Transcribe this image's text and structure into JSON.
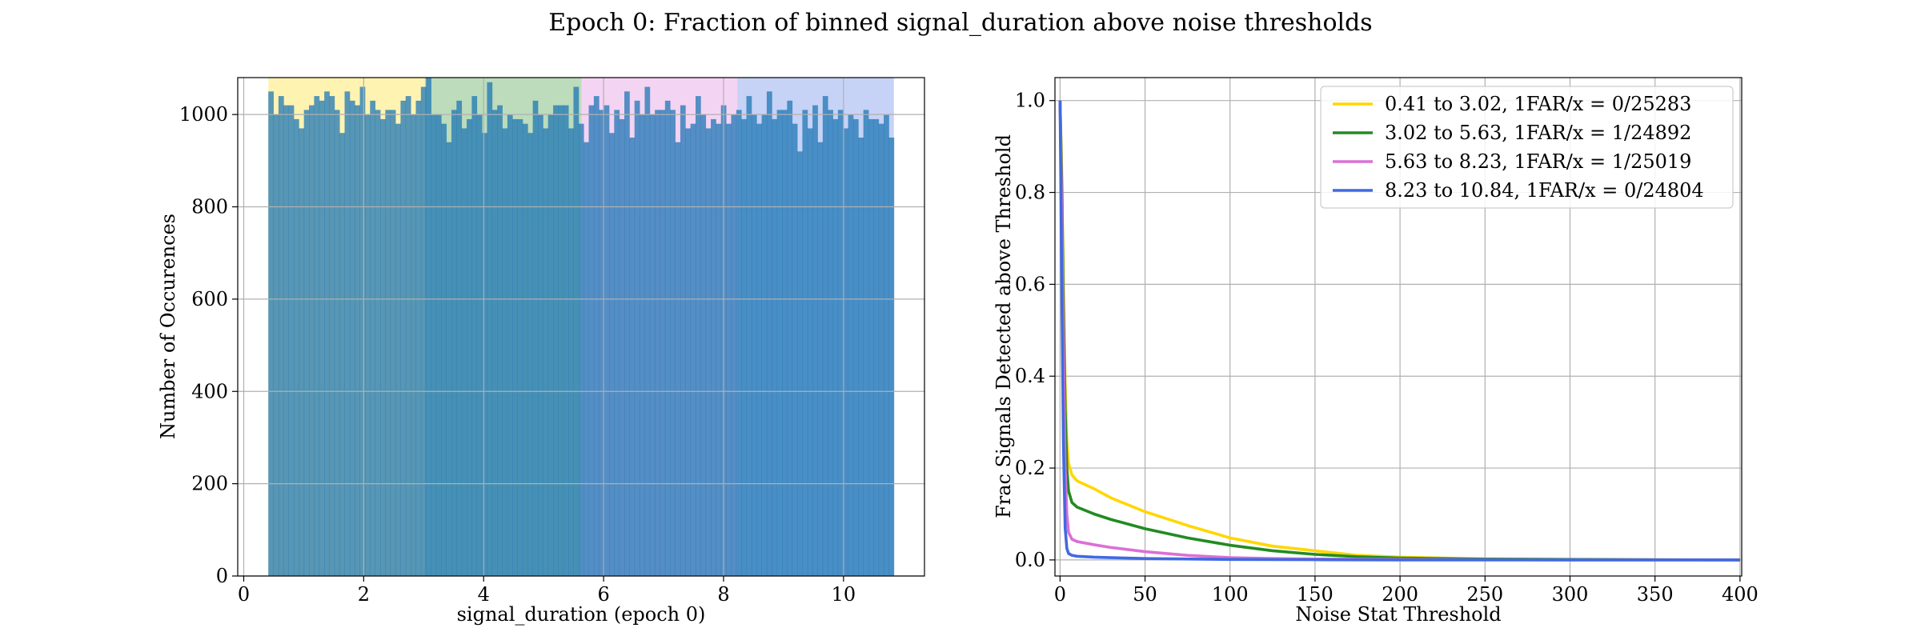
{
  "title": "Epoch 0: Fraction of binned signal_duration above noise thresholds",
  "colors": {
    "bin1": "#ffd700",
    "bin2": "#228b22",
    "bin3": "#da70d6",
    "bin4": "#4169e1",
    "hist_fill": "#1f77b4"
  },
  "chart_data": [
    {
      "type": "bar",
      "name": "histogram",
      "xlabel": "signal_duration (epoch 0)",
      "ylabel": "Number of Occurences",
      "xlim": [
        -0.1,
        11.35
      ],
      "ylim": [
        0,
        1080
      ],
      "xticks": [
        0,
        2,
        4,
        6,
        8,
        10
      ],
      "yticks": [
        0,
        200,
        400,
        600,
        800,
        1000
      ],
      "bin_range": [
        0.41,
        10.84
      ],
      "shaded_bins": [
        [
          0.41,
          3.02
        ],
        [
          3.02,
          5.63
        ],
        [
          5.63,
          8.23
        ],
        [
          8.23,
          10.84
        ]
      ],
      "values": [
        1050,
        1000,
        1040,
        1020,
        1020,
        990,
        970,
        1010,
        1020,
        1040,
        1030,
        1050,
        1040,
        1010,
        960,
        1050,
        1030,
        1020,
        1060,
        1000,
        1030,
        1010,
        990,
        1010,
        1010,
        980,
        1030,
        1040,
        1000,
        1030,
        1060,
        1080,
        1000,
        1000,
        980,
        940,
        1010,
        1030,
        970,
        990,
        1040,
        1000,
        960,
        1070,
        1010,
        1020,
        970,
        1000,
        990,
        990,
        980,
        960,
        1030,
        1000,
        970,
        1000,
        1020,
        1020,
        1020,
        970,
        1060,
        980,
        940,
        1020,
        1040,
        1010,
        1020,
        960,
        1010,
        990,
        1050,
        950,
        1030,
        1000,
        1060,
        1000,
        1010,
        1010,
        1030,
        1010,
        940,
        1020,
        970,
        980,
        1040,
        1000,
        970,
        990,
        980,
        1020,
        980,
        1000,
        1010,
        990,
        1040,
        1000,
        980,
        1000,
        1050,
        990,
        1010,
        1010,
        1030,
        980,
        920,
        1010,
        970,
        1020,
        940,
        1040,
        1010,
        990,
        1010,
        970,
        1000,
        990,
        950,
        1010,
        990,
        990,
        980,
        1000,
        950
      ]
    },
    {
      "type": "line",
      "name": "fraction_above_threshold",
      "xlabel": "Noise Stat Threshold",
      "ylabel": "Frac Signals Detected above Threshold",
      "xlim": [
        -3,
        401
      ],
      "ylim": [
        -0.035,
        1.05
      ],
      "xticks": [
        0,
        50,
        100,
        150,
        200,
        250,
        300,
        350,
        400
      ],
      "yticks": [
        0.0,
        0.2,
        0.4,
        0.6,
        0.8,
        1.0
      ],
      "legend_loc": "upper right",
      "series": [
        {
          "name": "0.41 to 3.02, 1FAR/x = 0/25283",
          "color": "#ffd700",
          "x": [
            0,
            1,
            2,
            3,
            4,
            5,
            7,
            10,
            20,
            30,
            50,
            75,
            100,
            125,
            150,
            175,
            200,
            250,
            300,
            350,
            400
          ],
          "y": [
            1.0,
            0.85,
            0.6,
            0.38,
            0.26,
            0.21,
            0.185,
            0.172,
            0.155,
            0.135,
            0.105,
            0.075,
            0.048,
            0.03,
            0.02,
            0.01,
            0.006,
            0.002,
            0.001,
            0.0005,
            0.0
          ]
        },
        {
          "name": "3.02 to 5.63, 1FAR/x = 1/24892",
          "color": "#228b22",
          "x": [
            0,
            1,
            2,
            3,
            4,
            5,
            7,
            10,
            20,
            30,
            50,
            75,
            100,
            125,
            150,
            175,
            200,
            250,
            300,
            350,
            400
          ],
          "y": [
            1.0,
            0.82,
            0.55,
            0.33,
            0.2,
            0.15,
            0.125,
            0.115,
            0.1,
            0.088,
            0.068,
            0.048,
            0.032,
            0.02,
            0.012,
            0.007,
            0.004,
            0.002,
            0.001,
            0.0005,
            0.0
          ]
        },
        {
          "name": "5.63 to 8.23, 1FAR/x = 1/25019",
          "color": "#da70d6",
          "x": [
            0,
            1,
            2,
            3,
            4,
            5,
            7,
            10,
            20,
            30,
            50,
            75,
            100,
            125,
            150,
            200,
            250,
            300,
            350,
            400
          ],
          "y": [
            1.0,
            0.75,
            0.45,
            0.2,
            0.1,
            0.06,
            0.045,
            0.04,
            0.033,
            0.027,
            0.018,
            0.01,
            0.005,
            0.003,
            0.002,
            0.001,
            0.0005,
            0.0,
            0.0,
            0.0
          ]
        },
        {
          "name": "8.23 to 10.84, 1FAR/x = 0/24804",
          "color": "#4169e1",
          "x": [
            0,
            1,
            2,
            3,
            4,
            5,
            7,
            10,
            20,
            30,
            50,
            100,
            150,
            200,
            250,
            300,
            350,
            400
          ],
          "y": [
            1.0,
            0.6,
            0.25,
            0.07,
            0.025,
            0.014,
            0.01,
            0.008,
            0.006,
            0.005,
            0.003,
            0.001,
            0.0005,
            0.0,
            0.0,
            0.0,
            0.0,
            0.0
          ]
        }
      ]
    }
  ]
}
